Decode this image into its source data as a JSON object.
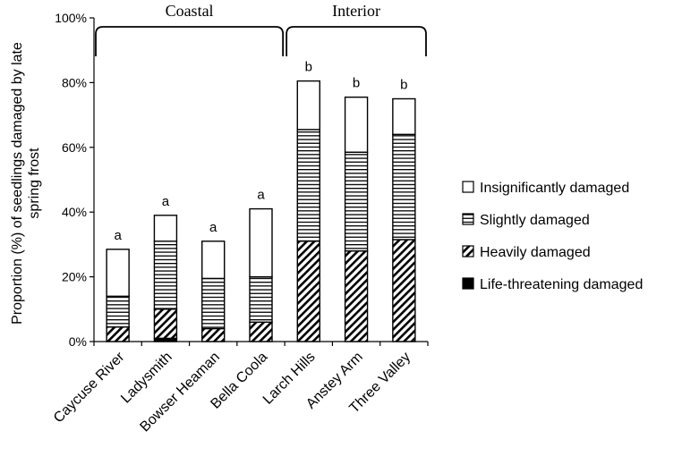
{
  "chart_data": {
    "type": "bar",
    "stacked": true,
    "categories": [
      "Caycuse River",
      "Ladysmith",
      "Bowser Heaman",
      "Bella Coola",
      "Larch Hills",
      "Anstey Arm",
      "Three Valley"
    ],
    "series": [
      {
        "name": "Life-threatening damaged",
        "pattern": "solid",
        "values": [
          0,
          1,
          0,
          0,
          0,
          0,
          0
        ]
      },
      {
        "name": "Heavily damaged",
        "pattern": "diagonal",
        "values": [
          4.5,
          9,
          4,
          6,
          31,
          28,
          31.5
        ]
      },
      {
        "name": "Slightly damaged",
        "pattern": "horizontal",
        "values": [
          9.5,
          21,
          15.5,
          14,
          34.5,
          30.5,
          32.5
        ]
      },
      {
        "name": "Insignificantly damaged",
        "pattern": "blank",
        "values": [
          14.5,
          8,
          11.5,
          21,
          15,
          17,
          11
        ]
      }
    ],
    "significance_labels": [
      "a",
      "a",
      "a",
      "a",
      "b",
      "b",
      "b"
    ],
    "groups": [
      {
        "label": "Coastal",
        "from": 0,
        "to": 3
      },
      {
        "label": "Interior",
        "from": 4,
        "to": 6
      }
    ],
    "ylabel": "Proportion (%) of seedlings damaged by late spring frost",
    "ylim": [
      0,
      100
    ],
    "yticks": [
      0,
      20,
      40,
      60,
      80,
      100
    ],
    "ytick_labels": [
      "0%",
      "20%",
      "40%",
      "60%",
      "80%",
      "100%"
    ],
    "legend_order": [
      "Insignificantly damaged",
      "Slightly damaged",
      "Heavily damaged",
      "Life-threatening damaged"
    ],
    "legend_position": "right",
    "grid": false
  }
}
